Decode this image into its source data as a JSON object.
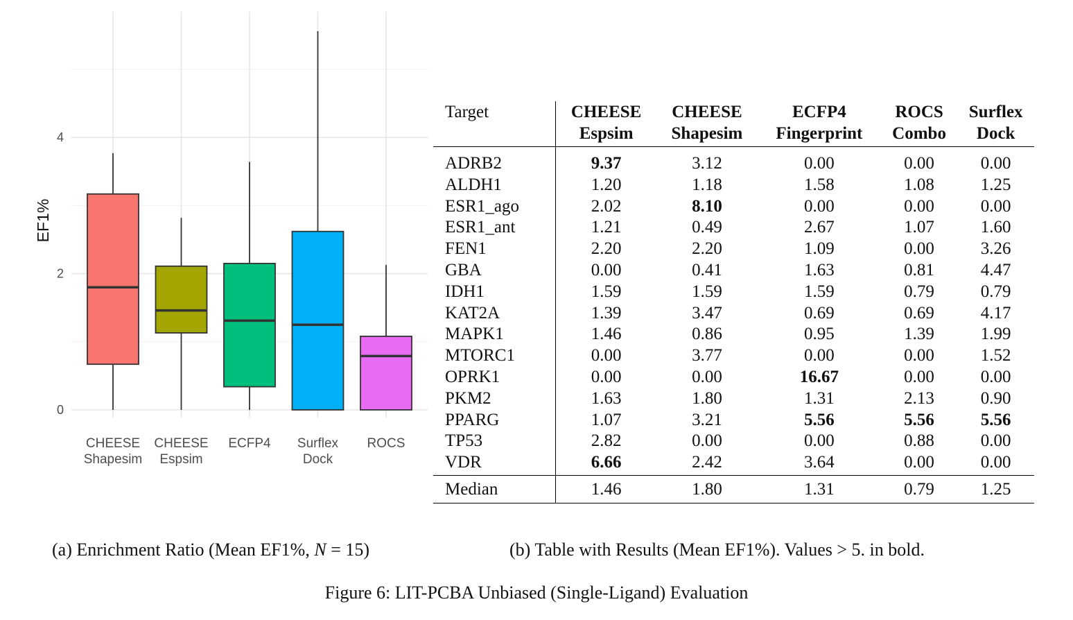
{
  "chart_data": {
    "type": "box",
    "ylabel": "EF1%",
    "y_ticks": [
      "0",
      "2",
      "4"
    ],
    "ylim": [
      -0.2,
      5.9
    ],
    "grid": true,
    "categories": [
      {
        "line1": "CHEESE",
        "line2": "Shapesim",
        "color": "#F8766D",
        "min": 0.0,
        "q1": 0.67,
        "median": 1.8,
        "q3": 3.17,
        "max": 3.77
      },
      {
        "line1": "CHEESE",
        "line2": "Espsim",
        "color": "#A3A500",
        "min": 0.0,
        "q1": 1.13,
        "median": 1.46,
        "q3": 2.11,
        "max": 2.82
      },
      {
        "line1": "ECFP4",
        "line2": "",
        "color": "#00BF7D",
        "min": 0.0,
        "q1": 0.34,
        "median": 1.31,
        "q3": 2.15,
        "max": 3.64
      },
      {
        "line1": "Surflex",
        "line2": "Dock",
        "color": "#00B0F6",
        "min": 0.0,
        "q1": 0.0,
        "median": 1.25,
        "q3": 2.62,
        "max": 5.56
      },
      {
        "line1": "ROCS",
        "line2": "",
        "color": "#E76BF3",
        "min": 0.0,
        "q1": 0.0,
        "median": 0.79,
        "q3": 1.08,
        "max": 2.13
      }
    ]
  },
  "table": {
    "header": {
      "target": "Target",
      "cols": [
        {
          "l1": "CHEESE",
          "l2": "Espsim"
        },
        {
          "l1": "CHEESE",
          "l2": "Shapesim"
        },
        {
          "l1": "ECFP4",
          "l2": "Fingerprint"
        },
        {
          "l1": "ROCS",
          "l2": "Combo"
        },
        {
          "l1": "Surflex",
          "l2": "Dock"
        }
      ]
    },
    "rows": [
      {
        "target": "ADRB2",
        "values": [
          "9.37",
          "3.12",
          "0.00",
          "0.00",
          "0.00"
        ],
        "bold": [
          true,
          false,
          false,
          false,
          false
        ]
      },
      {
        "target": "ALDH1",
        "values": [
          "1.20",
          "1.18",
          "1.58",
          "1.08",
          "1.25"
        ],
        "bold": [
          false,
          false,
          false,
          false,
          false
        ]
      },
      {
        "target": "ESR1_ago",
        "values": [
          "2.02",
          "8.10",
          "0.00",
          "0.00",
          "0.00"
        ],
        "bold": [
          false,
          true,
          false,
          false,
          false
        ]
      },
      {
        "target": "ESR1_ant",
        "values": [
          "1.21",
          "0.49",
          "2.67",
          "1.07",
          "1.60"
        ],
        "bold": [
          false,
          false,
          false,
          false,
          false
        ]
      },
      {
        "target": "FEN1",
        "values": [
          "2.20",
          "2.20",
          "1.09",
          "0.00",
          "3.26"
        ],
        "bold": [
          false,
          false,
          false,
          false,
          false
        ]
      },
      {
        "target": "GBA",
        "values": [
          "0.00",
          "0.41",
          "1.63",
          "0.81",
          "4.47"
        ],
        "bold": [
          false,
          false,
          false,
          false,
          false
        ]
      },
      {
        "target": "IDH1",
        "values": [
          "1.59",
          "1.59",
          "1.59",
          "0.79",
          "0.79"
        ],
        "bold": [
          false,
          false,
          false,
          false,
          false
        ]
      },
      {
        "target": "KAT2A",
        "values": [
          "1.39",
          "3.47",
          "0.69",
          "0.69",
          "4.17"
        ],
        "bold": [
          false,
          false,
          false,
          false,
          false
        ]
      },
      {
        "target": "MAPK1",
        "values": [
          "1.46",
          "0.86",
          "0.95",
          "1.39",
          "1.99"
        ],
        "bold": [
          false,
          false,
          false,
          false,
          false
        ]
      },
      {
        "target": "MTORC1",
        "values": [
          "0.00",
          "3.77",
          "0.00",
          "0.00",
          "1.52"
        ],
        "bold": [
          false,
          false,
          false,
          false,
          false
        ]
      },
      {
        "target": "OPRK1",
        "values": [
          "0.00",
          "0.00",
          "16.67",
          "0.00",
          "0.00"
        ],
        "bold": [
          false,
          false,
          true,
          false,
          false
        ]
      },
      {
        "target": "PKM2",
        "values": [
          "1.63",
          "1.80",
          "1.31",
          "2.13",
          "0.90"
        ],
        "bold": [
          false,
          false,
          false,
          false,
          false
        ]
      },
      {
        "target": "PPARG",
        "values": [
          "1.07",
          "3.21",
          "5.56",
          "5.56",
          "5.56"
        ],
        "bold": [
          false,
          false,
          true,
          true,
          true
        ]
      },
      {
        "target": "TP53",
        "values": [
          "2.82",
          "0.00",
          "0.00",
          "0.88",
          "0.00"
        ],
        "bold": [
          false,
          false,
          false,
          false,
          false
        ]
      },
      {
        "target": "VDR",
        "values": [
          "6.66",
          "2.42",
          "3.64",
          "0.00",
          "0.00"
        ],
        "bold": [
          true,
          false,
          false,
          false,
          false
        ]
      }
    ],
    "median": {
      "target": "Median",
      "values": [
        "1.46",
        "1.80",
        "1.31",
        "0.79",
        "1.25"
      ]
    }
  },
  "captions": {
    "a_prefix": "(a) Enrichment Ratio (Mean EF1%, ",
    "a_var": "N",
    "a_suffix": " = 15)",
    "b_prefix": "(b) Table with Results (Mean EF1%). Values > 5. in bold.",
    "figure": "Figure 6: LIT-PCBA Unbiased (Single-Ligand) Evaluation"
  }
}
